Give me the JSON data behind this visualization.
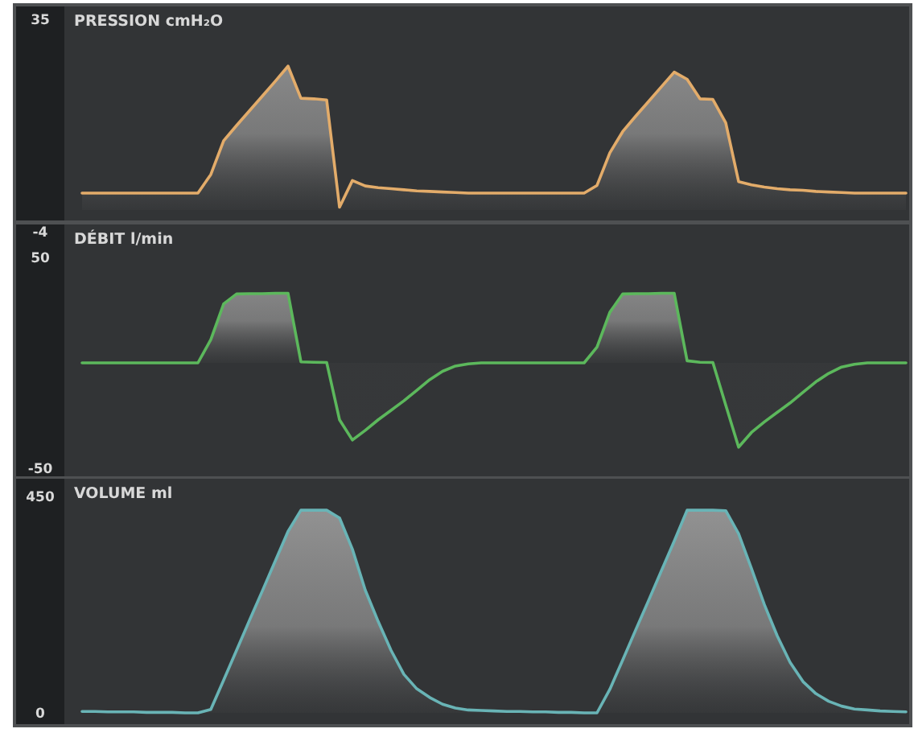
{
  "chart_data": [
    {
      "type": "area",
      "title": "PRESSION cmH₂O",
      "categories": [
        null,
        null,
        null,
        null,
        null,
        null,
        null,
        null,
        null,
        null,
        null,
        null,
        null,
        null,
        null,
        null,
        null,
        null,
        null,
        null,
        null,
        null,
        null,
        null,
        null,
        null,
        null,
        null,
        null,
        null,
        null,
        null,
        null,
        null,
        null,
        null,
        null,
        null,
        null,
        null,
        null,
        null,
        null,
        null,
        null,
        null,
        null,
        null,
        null,
        null,
        null,
        null,
        null,
        null,
        null,
        null,
        null,
        null,
        null,
        null,
        null,
        null,
        null,
        null,
        null
      ],
      "ylim": [
        -4,
        35
      ],
      "yticks": [
        -4,
        35
      ],
      "tick_labels": "y",
      "series": [
        {
          "color": "#e3ac6a",
          "values": [
            3.1,
            3.1,
            3.1,
            3.1,
            3.1,
            3.1,
            3.1,
            3.1,
            3.1,
            3.1,
            6.5,
            12.7,
            15.5,
            18.2,
            20.9,
            23.6,
            26.4,
            20.5,
            20.4,
            20.2,
            0.5,
            5.4,
            4.4,
            4.1,
            3.9,
            3.7,
            3.5,
            3.4,
            3.3,
            3.2,
            3.1,
            3.1,
            3.1,
            3.1,
            3.1,
            3.1,
            3.1,
            3.1,
            3.1,
            3.1,
            4.5,
            10.5,
            14.4,
            17.2,
            19.9,
            22.6,
            25.3,
            24,
            20.4,
            20.3,
            16,
            5.2,
            4.6,
            4.2,
            3.9,
            3.7,
            3.6,
            3.4,
            3.3,
            3.2,
            3.1,
            3.1,
            3.1,
            3.1,
            3.1
          ]
        }
      ]
    },
    {
      "type": "area",
      "title": "DÉBIT l/min",
      "categories": [
        null,
        null,
        null,
        null,
        null,
        null,
        null,
        null,
        null,
        null,
        null,
        null,
        null,
        null,
        null,
        null,
        null,
        null,
        null,
        null,
        null,
        null,
        null,
        null,
        null,
        null,
        null,
        null,
        null,
        null,
        null,
        null,
        null,
        null,
        null,
        null,
        null,
        null,
        null,
        null,
        null,
        null,
        null,
        null,
        null,
        null,
        null,
        null,
        null,
        null,
        null,
        null,
        null,
        null,
        null,
        null,
        null,
        null,
        null,
        null,
        null,
        null,
        null,
        null,
        null
      ],
      "ylim": [
        -50,
        50
      ],
      "yticks": [
        -50,
        50
      ],
      "tick_labels": "y",
      "series": [
        {
          "color": "#5cb85c",
          "values": [
            0,
            0,
            0,
            0,
            0,
            0,
            0,
            0,
            0,
            0,
            11,
            28,
            32.7,
            32.8,
            32.8,
            33,
            33,
            0.5,
            0.3,
            0.2,
            -27,
            -36.6,
            -32,
            -27,
            -22.5,
            -18,
            -13,
            -8,
            -4,
            -1.5,
            -0.5,
            0,
            0,
            0,
            0,
            0,
            0,
            0,
            0,
            0,
            7.5,
            24,
            32.7,
            32.8,
            32.8,
            33,
            33,
            1,
            0.3,
            0.2,
            -20,
            -40,
            -33,
            -28,
            -23.5,
            -19,
            -14,
            -9,
            -5,
            -2,
            -0.7,
            0,
            0,
            0,
            0
          ]
        }
      ]
    },
    {
      "type": "area",
      "title": "VOLUME ml",
      "categories": [
        null,
        null,
        null,
        null,
        null,
        null,
        null,
        null,
        null,
        null,
        null,
        null,
        null,
        null,
        null,
        null,
        null,
        null,
        null,
        null,
        null,
        null,
        null,
        null,
        null,
        null,
        null,
        null,
        null,
        null,
        null,
        null,
        null,
        null,
        null,
        null,
        null,
        null,
        null,
        null,
        null,
        null,
        null,
        null,
        null,
        null,
        null,
        null,
        null,
        null,
        null,
        null,
        null,
        null,
        null,
        null,
        null,
        null,
        null,
        null,
        null,
        null,
        null,
        null,
        null
      ],
      "ylim": [
        0,
        450
      ],
      "yticks": [
        0,
        450
      ],
      "tick_labels": "y",
      "series": [
        {
          "color": "#69b4b6",
          "values": [
            3,
            3,
            2,
            2,
            2,
            1,
            1,
            1,
            0,
            0,
            7,
            68,
            130,
            192,
            253,
            315,
            377,
            421,
            421,
            421,
            405,
            340,
            255,
            190,
            130,
            80,
            50,
            32,
            18,
            10,
            6,
            5,
            4,
            3,
            3,
            2,
            2,
            1,
            1,
            0,
            0,
            49,
            110,
            172,
            233,
            295,
            357,
            421,
            421,
            421,
            420,
            372,
            300,
            225,
            160,
            105,
            65,
            40,
            24,
            14,
            8,
            6,
            4,
            3,
            2
          ]
        }
      ]
    }
  ]
}
